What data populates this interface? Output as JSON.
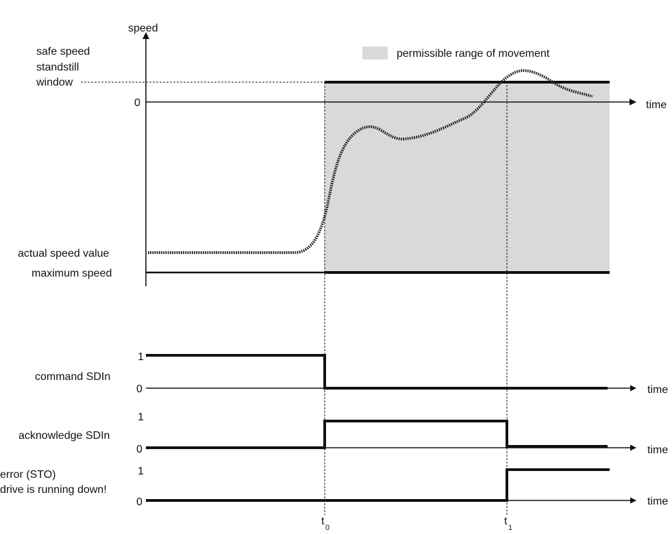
{
  "legend": {
    "label": "permissible range of movement",
    "swatch_color": "#d9d9d9"
  },
  "speed_chart": {
    "y_axis_label": "speed",
    "x_axis_label": "time",
    "labels": {
      "safe_speed_line1": "safe speed",
      "safe_speed_line2": "standstill",
      "safe_speed_line3": "window",
      "zero": "0",
      "actual_speed": "actual speed value",
      "maximum_speed": "maximum speed"
    }
  },
  "signals": [
    {
      "key": "command",
      "label_lines": [
        "command SDIn"
      ],
      "high": "1",
      "low": "0",
      "time_label": "time"
    },
    {
      "key": "acknowledge",
      "label_lines": [
        "acknowledge SDIn"
      ],
      "high": "1",
      "low": "0",
      "time_label": "time"
    },
    {
      "key": "error",
      "label_lines": [
        "error (STO)",
        "drive is running down!"
      ],
      "high": "1",
      "low": "0",
      "time_label": "time"
    }
  ],
  "time_markers": [
    {
      "key": "t0",
      "base": "t",
      "subscript": "0"
    },
    {
      "key": "t1",
      "base": "t",
      "subscript": "1"
    }
  ],
  "colors": {
    "ink": "#111111",
    "permissible_area": "#d9d9d9"
  }
}
